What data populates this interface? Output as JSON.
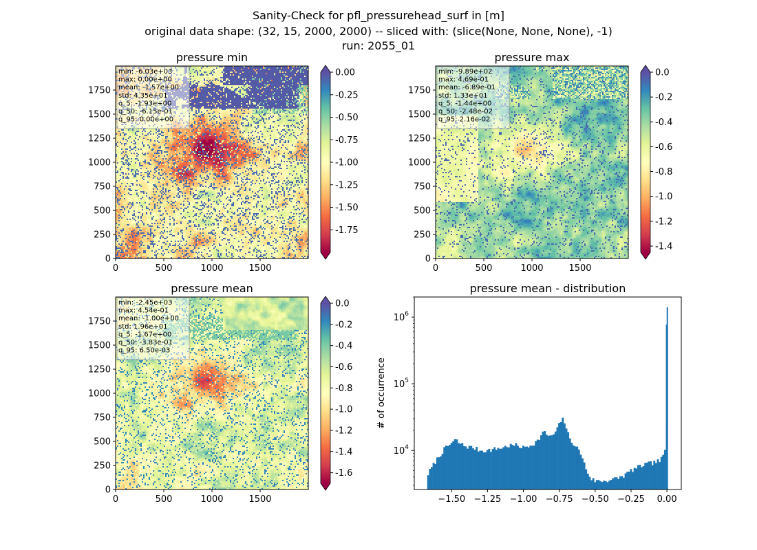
{
  "figure": {
    "title_lines": [
      "Sanity-Check for pfl_pressurehead_surf in [m]",
      "original data shape: (32, 15, 2000, 2000) -- sliced with: (slice(None, None, None), -1)",
      "run: 2055_01"
    ]
  },
  "chart_data": [
    {
      "type": "heatmap",
      "title": "pressure min",
      "xlim": [
        0,
        2000
      ],
      "ylim": [
        0,
        2000
      ],
      "x_ticks": [
        "0",
        "500",
        "1000",
        "1500"
      ],
      "y_ticks": [
        "0",
        "250",
        "500",
        "750",
        "1000",
        "1250",
        "1500",
        "1750"
      ],
      "colorbar": {
        "vmin": -2.0,
        "vmax": 0.0,
        "ticks": [
          "0.00",
          "-0.25",
          "-0.50",
          "-0.75",
          "-1.00",
          "-1.25",
          "-1.50",
          "-1.75"
        ],
        "extend": "both",
        "colormap": "Spectral"
      },
      "stats": [
        "min: -6.03e+03",
        "max: 0.00e+00",
        "mean: -1.57e+00",
        "std: 4.35e+01",
        "q_5: -1.93e+00",
        "q_50: -6.15e-01",
        "q_95: 0.00e+00"
      ]
    },
    {
      "type": "heatmap",
      "title": "pressure max",
      "xlim": [
        0,
        2000
      ],
      "ylim": [
        0,
        2000
      ],
      "x_ticks": [
        "0",
        "500",
        "1000",
        "1500"
      ],
      "y_ticks": [
        "0",
        "250",
        "500",
        "750",
        "1000",
        "1250",
        "1500",
        "1750"
      ],
      "colorbar": {
        "vmin": -1.45,
        "vmax": 0.0,
        "ticks": [
          "0.0",
          "-0.2",
          "-0.4",
          "-0.6",
          "-0.8",
          "-1.0",
          "-1.2",
          "-1.4"
        ],
        "extend": "both",
        "colormap": "Spectral"
      },
      "stats": [
        "min: -9.89e+02",
        "max: 4.69e-01",
        "mean: -6.89e-01",
        "std: 1.33e+01",
        "q_5: -1.44e+00",
        "q_50: -2.48e-02",
        "q_95: 2.16e-02"
      ]
    },
    {
      "type": "heatmap",
      "title": "pressure mean",
      "xlim": [
        0,
        2000
      ],
      "ylim": [
        0,
        2000
      ],
      "x_ticks": [
        "0",
        "500",
        "1000",
        "1500"
      ],
      "y_ticks": [
        "0",
        "250",
        "500",
        "750",
        "1000",
        "1250",
        "1500",
        "1750"
      ],
      "colorbar": {
        "vmin": -1.7,
        "vmax": 0.0,
        "ticks": [
          "0.0",
          "-0.2",
          "-0.4",
          "-0.6",
          "-0.8",
          "-1.0",
          "-1.2",
          "-1.4",
          "-1.6"
        ],
        "extend": "both",
        "colormap": "Spectral"
      },
      "stats": [
        "min: -2.45e+03",
        "max: 4.54e-01",
        "mean: -1.00e+00",
        "std: 1.96e+01",
        "q_5: -1.67e+00",
        "q_50: -3.83e-01",
        "q_95: 6.50e-03"
      ]
    },
    {
      "type": "bar",
      "title": "pressure mean - distribution",
      "ylabel": "# of occurrence",
      "xlabel": "",
      "y_scale": "log",
      "xlim": [
        -1.76,
        0.1
      ],
      "ylim": [
        2600,
        2000000
      ],
      "x_ticks": [
        "−1.50",
        "−1.25",
        "−1.00",
        "−0.75",
        "−0.50",
        "−0.25",
        "0.00"
      ],
      "y_ticks": [
        "10^4",
        "10^5",
        "10^6"
      ],
      "bar_color": "#1f77b4",
      "histogram_points": [
        [
          -1.67,
          4200
        ],
        [
          -1.64,
          5500
        ],
        [
          -1.6,
          7500
        ],
        [
          -1.55,
          10500
        ],
        [
          -1.5,
          13000
        ],
        [
          -1.47,
          14500
        ],
        [
          -1.45,
          13000
        ],
        [
          -1.4,
          11500
        ],
        [
          -1.35,
          11000
        ],
        [
          -1.3,
          10000
        ],
        [
          -1.25,
          10000
        ],
        [
          -1.2,
          10500
        ],
        [
          -1.15,
          11000
        ],
        [
          -1.1,
          11800
        ],
        [
          -1.05,
          12000
        ],
        [
          -1.0,
          11000
        ],
        [
          -0.95,
          12000
        ],
        [
          -0.9,
          14000
        ],
        [
          -0.86,
          19000
        ],
        [
          -0.83,
          17000
        ],
        [
          -0.8,
          16000
        ],
        [
          -0.76,
          22000
        ],
        [
          -0.73,
          30000
        ],
        [
          -0.71,
          26000
        ],
        [
          -0.68,
          15000
        ],
        [
          -0.64,
          12000
        ],
        [
          -0.6,
          9000
        ],
        [
          -0.56,
          5000
        ],
        [
          -0.53,
          3800
        ],
        [
          -0.5,
          3500
        ],
        [
          -0.45,
          3500
        ],
        [
          -0.4,
          3600
        ],
        [
          -0.35,
          3800
        ],
        [
          -0.3,
          4200
        ],
        [
          -0.25,
          5000
        ],
        [
          -0.2,
          5600
        ],
        [
          -0.15,
          6200
        ],
        [
          -0.1,
          6500
        ],
        [
          -0.05,
          7000
        ],
        [
          -0.02,
          8500
        ],
        [
          -0.01,
          11000
        ],
        [
          0.0,
          1400000
        ]
      ]
    }
  ]
}
